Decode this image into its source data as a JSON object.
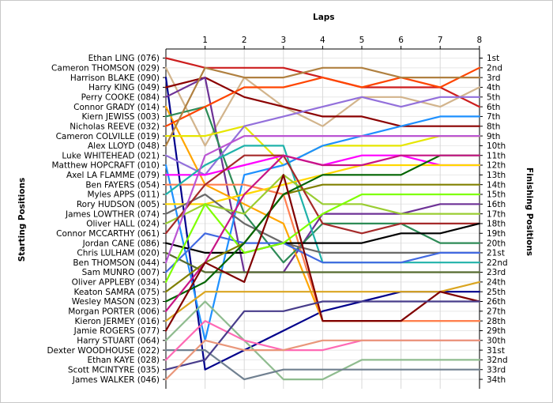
{
  "chart_data": {
    "type": "line",
    "title": "",
    "xlabel": "Laps",
    "ylabel_left": "Starting Positions",
    "ylabel_right": "Finishing Positions",
    "x": [
      0,
      1,
      2,
      3,
      4,
      5,
      6,
      7,
      8
    ],
    "x_tick_labels": [
      "1",
      "2",
      "3",
      "4",
      "5",
      "6",
      "7",
      "8"
    ],
    "y_range": [
      1,
      34
    ],
    "y_inverted": true,
    "grid": true,
    "start_labels": [
      "Ethan LING (076)",
      "Cameron THOMSON (029)",
      "Harrison BLAKE (090)",
      "Harry KING (049)",
      "Perry COOKE (084)",
      "Connor GRADY (014)",
      "Kiern JEWISS (003)",
      "Nicholas REEVE (032)",
      "Cameron COLVILLE (019)",
      "Alex LLOYD (048)",
      "Luke WHITEHEAD (021)",
      "Matthew HOPCRAFT (010)",
      "Axel LA FLAMME (079)",
      "Ben FAYERS (054)",
      "Myles APPS (011)",
      "Rory HUDSON (005)",
      "James LOWTHER (074)",
      "Oliver HALL (024)",
      "Connor MCCARTHY (061)",
      "Jordan CANE (086)",
      "Chris LULHAM (020)",
      "Ben THOMSON (044)",
      "Sam MUNRO (007)",
      "Oliver APPLEBY (034)",
      "Keaton SAMRA (075)",
      "Wesley MASON (023)",
      "Morgan PORTER (006)",
      "Kieron JERMEY (016)",
      "Jamie ROGERS (077)",
      "Harry STUART (064)",
      "Dexter WOODHOUSE (022)",
      "Ethan KAYE (028)",
      "Scott MCINTYRE (035)",
      "James WALKER (046)"
    ],
    "finish_labels": [
      "1st",
      "2nd",
      "3rd",
      "4th",
      "5th",
      "6th",
      "7th",
      "8th",
      "9th",
      "10th",
      "11th",
      "12th",
      "13th",
      "14th",
      "15th",
      "16th",
      "17th",
      "18th",
      "19th",
      "20th",
      "21st",
      "22nd",
      "23rd",
      "24th",
      "25th",
      "26th",
      "27th",
      "28th",
      "29th",
      "30th",
      "31st",
      "32nd",
      "33rd",
      "34th"
    ],
    "series": [
      {
        "color": "#cc1e1e",
        "values": [
          1,
          2,
          2,
          2,
          3,
          4,
          4,
          4,
          6
        ]
      },
      {
        "color": "#d2b48c",
        "values": [
          2,
          10,
          3,
          6,
          8,
          5,
          5,
          6,
          4
        ]
      },
      {
        "color": "#00008b",
        "values": [
          3,
          33,
          31,
          29,
          27,
          26,
          25,
          25,
          25
        ]
      },
      {
        "color": "#8b0000",
        "values": [
          4,
          3,
          5,
          6,
          7,
          7,
          8,
          8,
          8
        ]
      },
      {
        "color": "#6e3296",
        "values": [
          5,
          3,
          23,
          23,
          17,
          17,
          17,
          16,
          16
        ]
      },
      {
        "color": "#ffa500",
        "values": [
          6,
          14,
          16,
          18,
          28,
          28,
          28,
          28,
          28
        ]
      },
      {
        "color": "#2e8b57",
        "values": [
          7,
          6,
          17,
          22,
          18,
          18,
          18,
          20,
          20
        ]
      },
      {
        "color": "#ff4500",
        "values": [
          8,
          6,
          4,
          4,
          3,
          4,
          3,
          4,
          2
        ]
      },
      {
        "color": "#e6e600",
        "values": [
          9,
          9,
          8,
          12,
          10,
          10,
          10,
          9,
          9
        ]
      },
      {
        "color": "#b08040",
        "values": [
          10,
          2,
          3,
          3,
          2,
          2,
          3,
          3,
          3
        ]
      },
      {
        "color": "#9370db",
        "values": [
          11,
          13,
          8,
          7,
          6,
          5,
          6,
          5,
          5
        ]
      },
      {
        "color": "#1e90ff",
        "values": [
          12,
          30,
          13,
          12,
          10,
          9,
          8,
          7,
          7
        ]
      },
      {
        "color": "#ff00ff",
        "values": [
          13,
          13,
          12,
          11,
          12,
          11,
          11,
          12,
          12
        ]
      },
      {
        "color": "#ff7f50",
        "values": [
          14,
          14,
          14,
          15,
          28,
          28,
          28,
          28,
          28
        ]
      },
      {
        "color": "#20b2aa",
        "values": [
          15,
          12,
          10,
          10,
          22,
          22,
          22,
          22,
          22
        ]
      },
      {
        "color": "#ffd700",
        "values": [
          16,
          16,
          15,
          14,
          13,
          12,
          12,
          12,
          12
        ]
      },
      {
        "color": "#696969",
        "values": [
          17,
          15,
          18,
          20,
          21,
          21,
          21,
          21,
          21
        ]
      },
      {
        "color": "#9acd32",
        "values": [
          18,
          16,
          17,
          13,
          16,
          16,
          17,
          17,
          17
        ]
      },
      {
        "color": "#a52a2a",
        "values": [
          19,
          14,
          11,
          11,
          18,
          19,
          18,
          18,
          18
        ]
      },
      {
        "color": "#000000",
        "values": [
          20,
          21,
          21,
          20,
          20,
          20,
          19,
          19,
          18
        ]
      },
      {
        "color": "#556b2f",
        "values": [
          21,
          23,
          23,
          23,
          23,
          23,
          23,
          23,
          23
        ]
      },
      {
        "color": "#ba55d3",
        "values": [
          22,
          11,
          9,
          9,
          9,
          9,
          9,
          9,
          9
        ]
      },
      {
        "color": "#4169e1",
        "values": [
          23,
          19,
          20,
          20,
          22,
          22,
          22,
          21,
          21
        ]
      },
      {
        "color": "#7fff00",
        "values": [
          24,
          16,
          21,
          20,
          17,
          15,
          15,
          15,
          15
        ]
      },
      {
        "color": "#808000",
        "values": [
          25,
          22,
          20,
          15,
          14,
          14,
          14,
          14,
          14
        ]
      },
      {
        "color": "#006400",
        "values": [
          26,
          24,
          20,
          15,
          13,
          13,
          13,
          11,
          11
        ]
      },
      {
        "color": "#c71585",
        "values": [
          27,
          22,
          15,
          11,
          12,
          12,
          11,
          11,
          11
        ]
      },
      {
        "color": "#daa520",
        "values": [
          28,
          25,
          25,
          25,
          25,
          25,
          25,
          25,
          24
        ]
      },
      {
        "color": "#800000",
        "values": [
          29,
          22,
          24,
          13,
          28,
          28,
          28,
          25,
          26
        ]
      },
      {
        "color": "#8fbc8f",
        "values": [
          30,
          26,
          30,
          34,
          34,
          32,
          32,
          32,
          32
        ]
      },
      {
        "color": "#708090",
        "values": [
          31,
          31,
          34,
          33,
          33,
          33,
          33,
          33,
          33
        ]
      },
      {
        "color": "#ff69b4",
        "values": [
          32,
          28,
          30,
          31,
          31,
          30,
          30,
          30,
          30
        ]
      },
      {
        "color": "#483d8b",
        "values": [
          33,
          32,
          27,
          27,
          26,
          26,
          26,
          26,
          26
        ]
      },
      {
        "color": "#e9967a",
        "values": [
          34,
          30,
          31,
          31,
          30,
          30,
          30,
          30,
          30
        ]
      }
    ]
  }
}
